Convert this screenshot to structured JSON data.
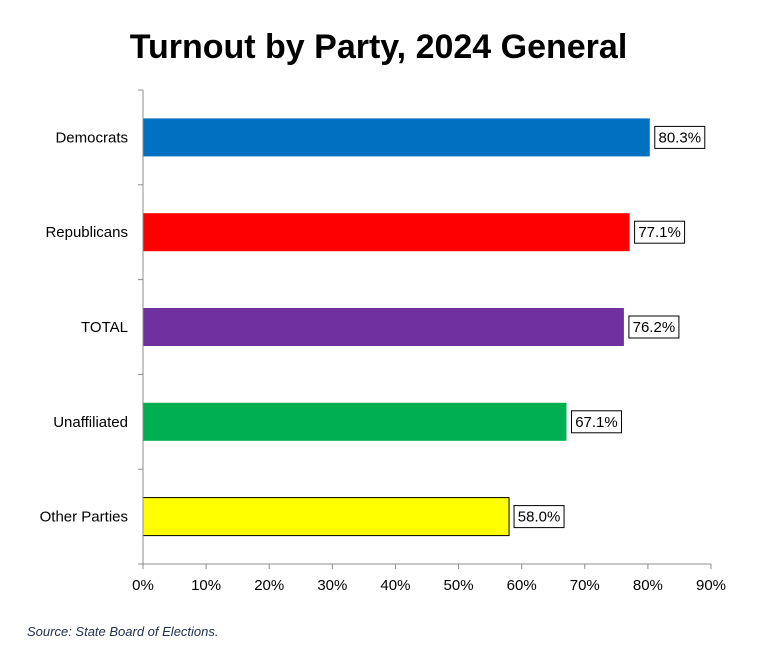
{
  "chart_data": {
    "type": "bar",
    "orientation": "horizontal",
    "title": "Turnout by Party, 2024 General",
    "categories": [
      "Democrats",
      "Republicans",
      "TOTAL",
      "Unaffiliated",
      "Other Parties"
    ],
    "values": [
      80.3,
      77.1,
      76.2,
      67.1,
      58.0
    ],
    "data_labels": [
      "80.3%",
      "77.1%",
      "76.2%",
      "67.1%",
      "58.0%"
    ],
    "colors": [
      "#0070c0",
      "#ff0000",
      "#7030a0",
      "#00b050",
      "#ffff00"
    ],
    "xlim": [
      0,
      90
    ],
    "x_ticks": [
      0,
      10,
      20,
      30,
      40,
      50,
      60,
      70,
      80,
      90
    ],
    "x_tick_labels": [
      "0%",
      "10%",
      "20%",
      "30%",
      "40%",
      "50%",
      "60%",
      "70%",
      "80%",
      "90%"
    ],
    "xlabel": "",
    "ylabel": "",
    "grid": false,
    "legend": "none"
  },
  "source": "Source: State Board of Elections."
}
